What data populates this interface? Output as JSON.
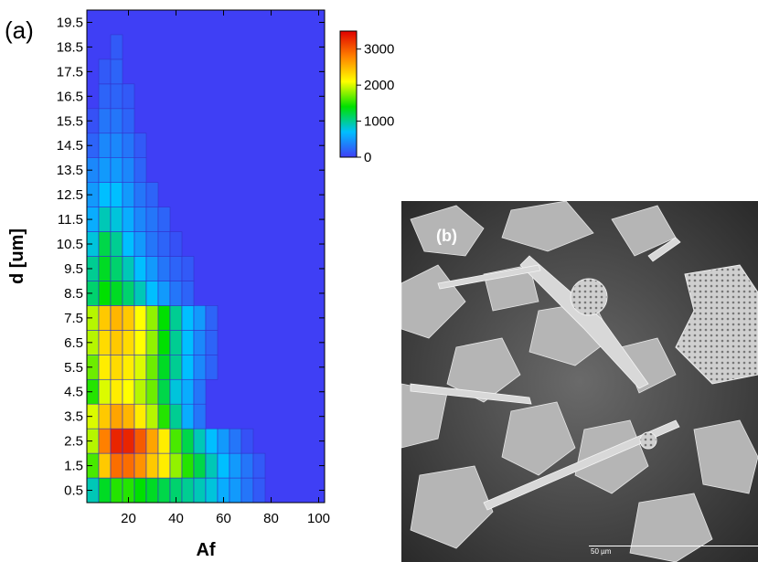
{
  "chart_data": [
    {
      "type": "heatmap",
      "panel_label": "(a)",
      "xlabel": "Af",
      "ylabel": "d [um]",
      "x_ticks": [
        20,
        40,
        60,
        80,
        100
      ],
      "y_ticks": [
        "0.5",
        "1.5",
        "2.5",
        "3.5",
        "4.5",
        "5.5",
        "6.5",
        "7.5",
        "8.5",
        "9.5",
        "10.5",
        "11.5",
        "12.5",
        "13.5",
        "14.5",
        "15.5",
        "16.5",
        "17.5",
        "18.5",
        "19.5"
      ],
      "xlim": [
        2.5,
        102.5
      ],
      "ylim": [
        0,
        20
      ],
      "x_bin_centers": [
        5,
        10,
        15,
        20,
        25,
        30,
        35,
        40,
        45,
        50,
        55,
        60,
        65,
        70,
        75,
        80,
        85,
        90,
        95,
        100
      ],
      "y_bin_centers": [
        0.5,
        1.5,
        2.5,
        3.5,
        4.5,
        5.5,
        6.5,
        7.5,
        8.5,
        9.5,
        10.5,
        11.5,
        12.5,
        13.5,
        14.5,
        15.5,
        16.5,
        17.5,
        18.5,
        19.5
      ],
      "z_rows_y_ascending": [
        [
          900,
          1300,
          1500,
          1500,
          1400,
          1300,
          1200,
          1100,
          1000,
          900,
          800,
          600,
          500,
          300,
          150,
          0,
          0,
          0,
          0,
          0
        ],
        [
          1600,
          2400,
          2900,
          2900,
          2700,
          2400,
          2200,
          1800,
          1500,
          1200,
          900,
          700,
          500,
          300,
          150,
          0,
          0,
          0,
          0,
          0
        ],
        [
          1900,
          2800,
          3300,
          3300,
          3000,
          2600,
          2200,
          1600,
          1200,
          900,
          700,
          500,
          300,
          100,
          0,
          0,
          0,
          0,
          0,
          0
        ],
        [
          2000,
          2400,
          2600,
          2500,
          2200,
          1900,
          1500,
          1000,
          600,
          300,
          0,
          0,
          0,
          0,
          0,
          0,
          0,
          0,
          0,
          0
        ],
        [
          1500,
          2000,
          2200,
          2100,
          1900,
          1700,
          1200,
          800,
          600,
          300,
          0,
          0,
          0,
          0,
          0,
          0,
          0,
          0,
          0,
          0
        ],
        [
          1700,
          2200,
          2300,
          2200,
          2000,
          1700,
          1300,
          1000,
          700,
          400,
          200,
          0,
          0,
          0,
          0,
          0,
          0,
          0,
          0,
          0
        ],
        [
          1900,
          2300,
          2400,
          2300,
          2100,
          1800,
          1400,
          1000,
          700,
          400,
          200,
          0,
          0,
          0,
          0,
          0,
          0,
          0,
          0,
          0
        ],
        [
          1900,
          2400,
          2500,
          2400,
          2100,
          1800,
          1400,
          1000,
          700,
          500,
          200,
          0,
          0,
          0,
          0,
          0,
          0,
          0,
          0,
          0
        ],
        [
          1100,
          1400,
          1300,
          1100,
          900,
          700,
          500,
          300,
          200,
          0,
          0,
          0,
          0,
          0,
          0,
          0,
          0,
          0,
          0,
          0
        ],
        [
          1000,
          1300,
          1100,
          900,
          700,
          500,
          300,
          200,
          150,
          0,
          0,
          0,
          0,
          0,
          0,
          0,
          0,
          0,
          0,
          0
        ],
        [
          800,
          1200,
          1000,
          700,
          500,
          300,
          200,
          100,
          0,
          0,
          0,
          0,
          0,
          0,
          0,
          0,
          0,
          0,
          0,
          0
        ],
        [
          600,
          900,
          800,
          600,
          400,
          300,
          200,
          0,
          0,
          0,
          0,
          0,
          0,
          0,
          0,
          0,
          0,
          0,
          0,
          0
        ],
        [
          500,
          700,
          700,
          500,
          300,
          200,
          0,
          0,
          0,
          0,
          0,
          0,
          0,
          0,
          0,
          0,
          0,
          0,
          0,
          0
        ],
        [
          400,
          500,
          500,
          400,
          200,
          0,
          0,
          0,
          0,
          0,
          0,
          0,
          0,
          0,
          0,
          0,
          0,
          0,
          0,
          0
        ],
        [
          200,
          400,
          400,
          300,
          150,
          0,
          0,
          0,
          0,
          0,
          0,
          0,
          0,
          0,
          0,
          0,
          0,
          0,
          0,
          0
        ],
        [
          100,
          300,
          300,
          200,
          0,
          0,
          0,
          0,
          0,
          0,
          0,
          0,
          0,
          0,
          0,
          0,
          0,
          0,
          0,
          0
        ],
        [
          0,
          200,
          200,
          150,
          0,
          0,
          0,
          0,
          0,
          0,
          0,
          0,
          0,
          0,
          0,
          0,
          0,
          0,
          0,
          0
        ],
        [
          0,
          150,
          200,
          0,
          0,
          0,
          0,
          0,
          0,
          0,
          0,
          0,
          0,
          0,
          0,
          0,
          0,
          0,
          0,
          0
        ],
        [
          0,
          0,
          150,
          0,
          0,
          0,
          0,
          0,
          0,
          0,
          0,
          0,
          0,
          0,
          0,
          0,
          0,
          0,
          0,
          0
        ],
        [
          0,
          0,
          0,
          0,
          0,
          0,
          0,
          0,
          0,
          0,
          0,
          0,
          0,
          0,
          0,
          0,
          0,
          0,
          0,
          0
        ]
      ],
      "colorbar": {
        "min": 0,
        "max": 3500,
        "ticks": [
          0,
          1000,
          2000,
          3000
        ],
        "colormap": [
          "#3f3ff5",
          "#00bfff",
          "#00e000",
          "#ffff00",
          "#ff8000",
          "#e00000"
        ],
        "cell_edge_color": "#3333cc",
        "background_color": "#3f3ff5"
      }
    }
  ],
  "sem_image": {
    "panel_label": "(b)",
    "scale_bar_text": "50 µm"
  }
}
